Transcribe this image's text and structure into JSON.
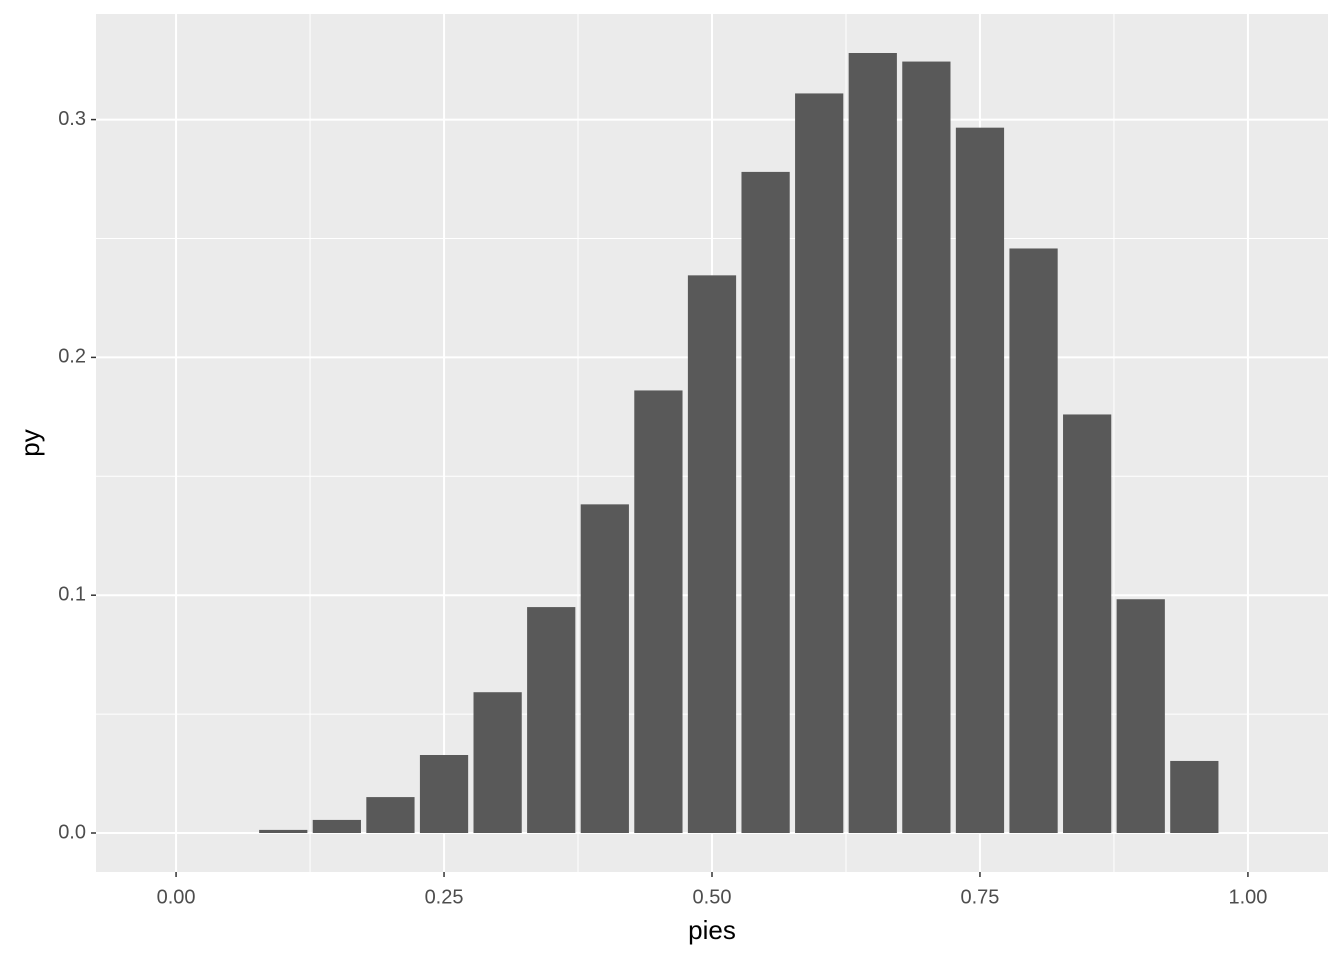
{
  "chart_data": {
    "type": "bar",
    "x_label": "pies",
    "y_label": "py",
    "x": [
      0,
      0.05,
      0.1,
      0.15,
      0.2,
      0.25,
      0.3,
      0.35,
      0.4,
      0.45,
      0.5,
      0.55,
      0.6,
      0.65,
      0.7,
      0.75,
      0.8,
      0.85,
      0.9,
      0.95,
      1.0
    ],
    "values": [
      0,
      0,
      0.0013,
      0.0055,
      0.0151,
      0.0328,
      0.0592,
      0.095,
      0.1382,
      0.1861,
      0.2345,
      0.278,
      0.311,
      0.328,
      0.3244,
      0.2966,
      0.2458,
      0.176,
      0.0983,
      0.0303,
      0
    ],
    "color": "#595959",
    "xlim": [
      -0.0747,
      1.0747
    ],
    "ylim": [
      -0.0164,
      0.3444
    ],
    "xticks": [
      {
        "value": 0,
        "label": "0.00"
      },
      {
        "value": 0.25,
        "label": "0.25"
      },
      {
        "value": 0.5,
        "label": "0.50"
      },
      {
        "value": 0.75,
        "label": "0.75"
      },
      {
        "value": 1,
        "label": "1.00"
      }
    ],
    "yticks": [
      {
        "value": 0,
        "label": "0.0"
      },
      0.1,
      0.2,
      0.3
    ],
    "xminor": [
      0.125,
      0.375,
      0.625,
      0.875
    ],
    "yminor": [
      0.05,
      0.15,
      0.25
    ],
    "bar_width": 0.045,
    "grid": true
  }
}
